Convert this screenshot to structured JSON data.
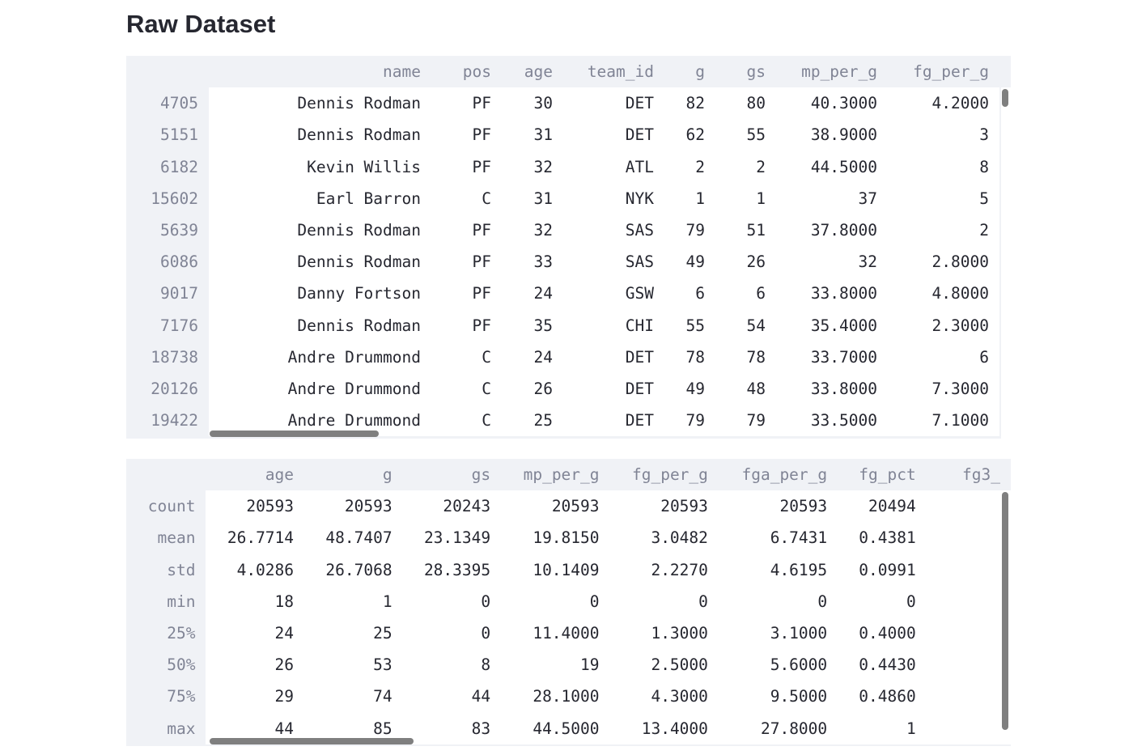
{
  "page_title": "Raw Dataset",
  "raw_table": {
    "columns": [
      "name",
      "pos",
      "age",
      "team_id",
      "g",
      "gs",
      "mp_per_g",
      "fg_per_g"
    ],
    "rows": [
      {
        "index": "4705",
        "cells": [
          "Dennis Rodman",
          "PF",
          "30",
          "DET",
          "82",
          "80",
          "40.3000",
          "4.2000"
        ]
      },
      {
        "index": "5151",
        "cells": [
          "Dennis Rodman",
          "PF",
          "31",
          "DET",
          "62",
          "55",
          "38.9000",
          "3"
        ]
      },
      {
        "index": "6182",
        "cells": [
          "Kevin Willis",
          "PF",
          "32",
          "ATL",
          "2",
          "2",
          "44.5000",
          "8"
        ]
      },
      {
        "index": "15602",
        "cells": [
          "Earl Barron",
          "C",
          "31",
          "NYK",
          "1",
          "1",
          "37",
          "5"
        ]
      },
      {
        "index": "5639",
        "cells": [
          "Dennis Rodman",
          "PF",
          "32",
          "SAS",
          "79",
          "51",
          "37.8000",
          "2"
        ]
      },
      {
        "index": "6086",
        "cells": [
          "Dennis Rodman",
          "PF",
          "33",
          "SAS",
          "49",
          "26",
          "32",
          "2.8000"
        ]
      },
      {
        "index": "9017",
        "cells": [
          "Danny Fortson",
          "PF",
          "24",
          "GSW",
          "6",
          "6",
          "33.8000",
          "4.8000"
        ]
      },
      {
        "index": "7176",
        "cells": [
          "Dennis Rodman",
          "PF",
          "35",
          "CHI",
          "55",
          "54",
          "35.4000",
          "2.3000"
        ]
      },
      {
        "index": "18738",
        "cells": [
          "Andre Drummond",
          "C",
          "24",
          "DET",
          "78",
          "78",
          "33.7000",
          "6"
        ]
      },
      {
        "index": "20126",
        "cells": [
          "Andre Drummond",
          "C",
          "26",
          "DET",
          "49",
          "48",
          "33.8000",
          "7.3000"
        ]
      },
      {
        "index": "19422",
        "cells": [
          "Andre Drummond",
          "C",
          "25",
          "DET",
          "79",
          "79",
          "33.5000",
          "7.1000"
        ]
      }
    ]
  },
  "stats_table": {
    "columns": [
      "age",
      "g",
      "gs",
      "mp_per_g",
      "fg_per_g",
      "fga_per_g",
      "fg_pct",
      "fg3_"
    ],
    "rows": [
      {
        "index": "count",
        "cells": [
          "20593",
          "20593",
          "20243",
          "20593",
          "20593",
          "20593",
          "20494",
          ""
        ]
      },
      {
        "index": "mean",
        "cells": [
          "26.7714",
          "48.7407",
          "23.1349",
          "19.8150",
          "3.0482",
          "6.7431",
          "0.4381",
          ""
        ]
      },
      {
        "index": "std",
        "cells": [
          "4.0286",
          "26.7068",
          "28.3395",
          "10.1409",
          "2.2270",
          "4.6195",
          "0.0991",
          ""
        ]
      },
      {
        "index": "min",
        "cells": [
          "18",
          "1",
          "0",
          "0",
          "0",
          "0",
          "0",
          ""
        ]
      },
      {
        "index": "25%",
        "cells": [
          "24",
          "25",
          "0",
          "11.4000",
          "1.3000",
          "3.1000",
          "0.4000",
          ""
        ]
      },
      {
        "index": "50%",
        "cells": [
          "26",
          "53",
          "8",
          "19",
          "2.5000",
          "5.6000",
          "0.4430",
          ""
        ]
      },
      {
        "index": "75%",
        "cells": [
          "29",
          "74",
          "44",
          "28.1000",
          "4.3000",
          "9.5000",
          "0.4860",
          ""
        ]
      },
      {
        "index": "max",
        "cells": [
          "44",
          "85",
          "83",
          "44.5000",
          "13.4000",
          "27.8000",
          "1",
          ""
        ]
      }
    ]
  }
}
